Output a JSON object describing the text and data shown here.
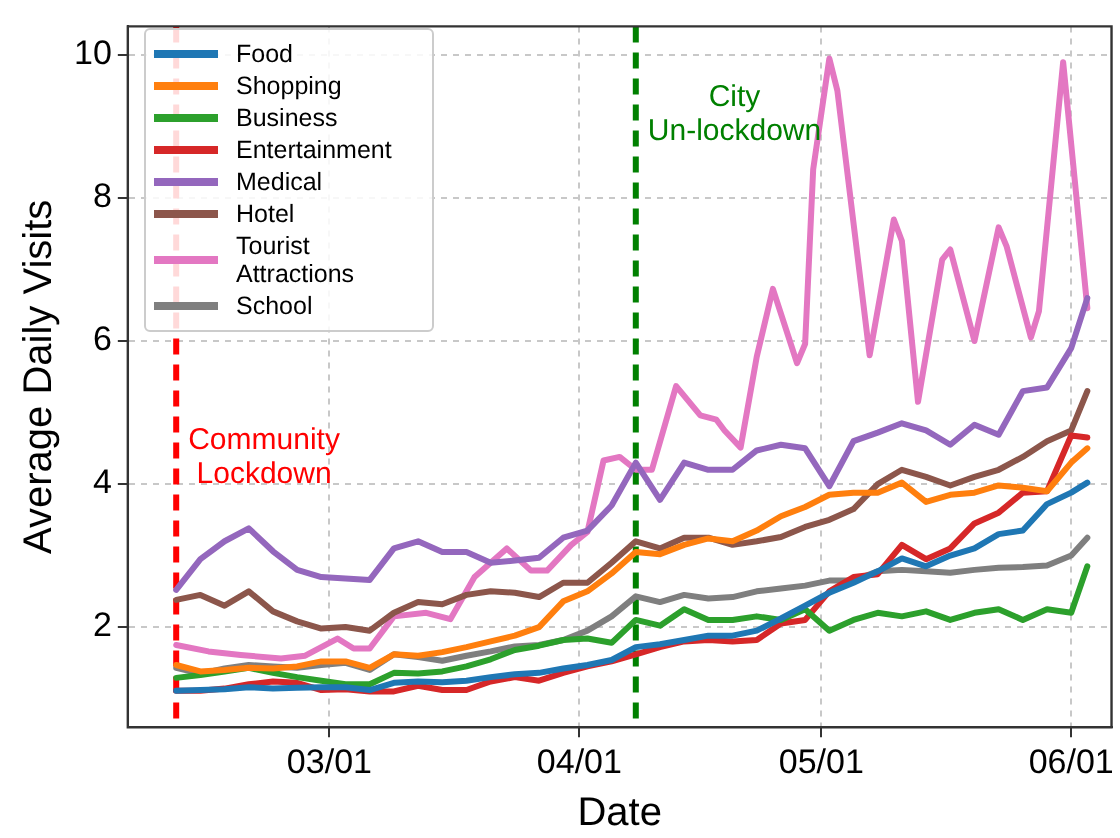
{
  "chart_data": {
    "type": "line",
    "xlabel": "Date",
    "ylabel": "Average Daily Visits",
    "x": [
      "--02-11",
      "--02-14",
      "--02-17",
      "--02-20",
      "--02-23",
      "--02-26",
      "--02-29",
      "--03-03",
      "--03-06",
      "--03-09",
      "--03-12",
      "--03-15",
      "--03-18",
      "--03-21",
      "--03-24",
      "--03-27",
      "--03-30",
      "--04-02",
      "--04-05",
      "--04-08",
      "--04-11",
      "--04-14",
      "--04-17",
      "--04-20",
      "--04-23",
      "--04-26",
      "--04-29",
      "--05-02",
      "--05-05",
      "--05-08",
      "--05-11",
      "--05-14",
      "--05-17",
      "--05-20",
      "--05-23",
      "--05-26",
      "--05-29",
      "--06-01",
      "--06-03"
    ],
    "series": [
      {
        "name": "Food",
        "color": "#1f77b4",
        "values": [
          1.11,
          1.12,
          1.13,
          1.16,
          1.14,
          1.15,
          1.16,
          1.16,
          1.12,
          1.22,
          1.24,
          1.23,
          1.25,
          1.3,
          1.34,
          1.36,
          1.42,
          1.47,
          1.54,
          1.72,
          1.76,
          1.82,
          1.88,
          1.88,
          1.95,
          2.12,
          2.3,
          2.48,
          2.62,
          2.78,
          2.96,
          2.85,
          3.0,
          3.1,
          3.3,
          3.35,
          3.72,
          3.88,
          4.02
        ]
      },
      {
        "name": "Shopping",
        "color": "#ff7f0e",
        "values": [
          1.47,
          1.38,
          1.4,
          1.43,
          1.42,
          1.45,
          1.52,
          1.52,
          1.43,
          1.62,
          1.6,
          1.65,
          1.72,
          1.8,
          1.88,
          2.0,
          2.36,
          2.5,
          2.75,
          3.05,
          3.02,
          3.15,
          3.24,
          3.2,
          3.35,
          3.55,
          3.68,
          3.85,
          3.88,
          3.88,
          4.02,
          3.75,
          3.85,
          3.88,
          3.98,
          3.95,
          3.9,
          4.3,
          4.5
        ]
      },
      {
        "name": "Business",
        "color": "#2ca02c",
        "values": [
          1.29,
          1.33,
          1.38,
          1.43,
          1.36,
          1.3,
          1.25,
          1.2,
          1.2,
          1.36,
          1.35,
          1.38,
          1.45,
          1.55,
          1.68,
          1.74,
          1.82,
          1.84,
          1.78,
          2.1,
          2.02,
          2.25,
          2.1,
          2.1,
          2.15,
          2.1,
          2.25,
          1.95,
          2.1,
          2.2,
          2.15,
          2.22,
          2.1,
          2.2,
          2.25,
          2.1,
          2.25,
          2.2,
          2.85
        ]
      },
      {
        "name": "Entertainment",
        "color": "#d62728",
        "values": [
          1.11,
          1.11,
          1.14,
          1.2,
          1.24,
          1.22,
          1.12,
          1.13,
          1.1,
          1.1,
          1.18,
          1.12,
          1.12,
          1.24,
          1.3,
          1.25,
          1.36,
          1.45,
          1.52,
          1.62,
          1.72,
          1.8,
          1.82,
          1.8,
          1.82,
          2.05,
          2.1,
          2.5,
          2.7,
          2.74,
          3.15,
          2.95,
          3.1,
          3.45,
          3.6,
          3.88,
          3.9,
          4.68,
          4.65
        ]
      },
      {
        "name": "Medical",
        "color": "#9467bd",
        "values": [
          2.52,
          2.95,
          3.2,
          3.38,
          3.06,
          2.8,
          2.7,
          2.68,
          2.66,
          3.1,
          3.2,
          3.05,
          3.05,
          2.9,
          2.93,
          2.97,
          3.25,
          3.35,
          3.7,
          4.3,
          3.78,
          4.3,
          4.2,
          4.2,
          4.47,
          4.55,
          4.5,
          3.97,
          4.6,
          4.72,
          4.85,
          4.75,
          4.55,
          4.83,
          4.69,
          5.3,
          5.35,
          5.9,
          6.6
        ]
      },
      {
        "name": "Hotel",
        "color": "#8c564b",
        "values": [
          2.38,
          2.45,
          2.3,
          2.5,
          2.22,
          2.08,
          1.98,
          2.0,
          1.95,
          2.2,
          2.35,
          2.32,
          2.45,
          2.5,
          2.48,
          2.42,
          2.62,
          2.62,
          2.9,
          3.2,
          3.1,
          3.25,
          3.25,
          3.15,
          3.2,
          3.26,
          3.4,
          3.5,
          3.65,
          4.0,
          4.2,
          4.1,
          3.98,
          4.1,
          4.2,
          4.38,
          4.6,
          4.75,
          5.3
        ]
      },
      {
        "name": "Tourist Attractions",
        "color": "#e377c2",
        "x": [
          "--02-11",
          "--02-15",
          "--02-19",
          "--02-24",
          "--02-27",
          "--03-02",
          "--03-04",
          "--03-06",
          "--03-09",
          "--03-13",
          "--03-16",
          "--03-19",
          "--03-23",
          "--03-26",
          "--03-28",
          "--03-31",
          "--04-02",
          "--04-04",
          "--04-06",
          "--04-08",
          "--04-10",
          "--04-13",
          "--04-16",
          "--04-18",
          "--04-19",
          "--04-21",
          "--04-23",
          "--04-25",
          "--04-28",
          "--04-29",
          "--04-30",
          "--05-02",
          "--05-03",
          "--05-07",
          "--05-10",
          "--05-11",
          "--05-13",
          "--05-16",
          "--05-17",
          "--05-20",
          "--05-23",
          "--05-24",
          "--05-27",
          "--05-28",
          "--05-31",
          "--06-03"
        ],
        "values": [
          1.75,
          1.66,
          1.61,
          1.56,
          1.6,
          1.84,
          1.7,
          1.7,
          2.15,
          2.2,
          2.11,
          2.7,
          3.1,
          2.79,
          2.79,
          3.15,
          3.33,
          4.33,
          4.38,
          4.2,
          4.2,
          5.37,
          4.96,
          4.9,
          4.75,
          4.51,
          5.78,
          6.73,
          5.69,
          5.96,
          8.4,
          9.95,
          9.5,
          5.8,
          7.7,
          7.4,
          5.15,
          7.14,
          7.28,
          6.0,
          7.59,
          7.32,
          6.05,
          6.42,
          9.9,
          6.46
        ]
      },
      {
        "name": "School",
        "color": "#7f7f7f",
        "values": [
          1.43,
          1.35,
          1.42,
          1.47,
          1.45,
          1.43,
          1.47,
          1.5,
          1.4,
          1.62,
          1.58,
          1.53,
          1.6,
          1.66,
          1.73,
          1.75,
          1.82,
          1.95,
          2.15,
          2.43,
          2.35,
          2.45,
          2.4,
          2.42,
          2.5,
          2.54,
          2.58,
          2.65,
          2.65,
          2.78,
          2.8,
          2.78,
          2.76,
          2.8,
          2.83,
          2.84,
          2.86,
          3.0,
          3.25
        ]
      }
    ],
    "xlim": [
      "--02-05",
      "--06-06"
    ],
    "xticks": [
      {
        "value": "--03-01",
        "label": "03/01"
      },
      {
        "value": "--04-01",
        "label": "04/01"
      },
      {
        "value": "--05-01",
        "label": "05/01"
      },
      {
        "value": "--06-01",
        "label": "06/01"
      }
    ],
    "ylim": [
      0.6,
      10.4
    ],
    "yticks": [
      2,
      4,
      6,
      8,
      10
    ],
    "ref_lines": [
      {
        "axis": "x",
        "value": "--02-11",
        "label": "Community Lockdown",
        "color": "#ff0000",
        "line_style": "dashed"
      },
      {
        "axis": "x",
        "value": "--04-08",
        "label": "City Un-lockdown",
        "color": "#008000",
        "line_style": "dashed"
      }
    ],
    "grid": true,
    "legend": "top left",
    "marker": "none",
    "line_style": "solid"
  }
}
